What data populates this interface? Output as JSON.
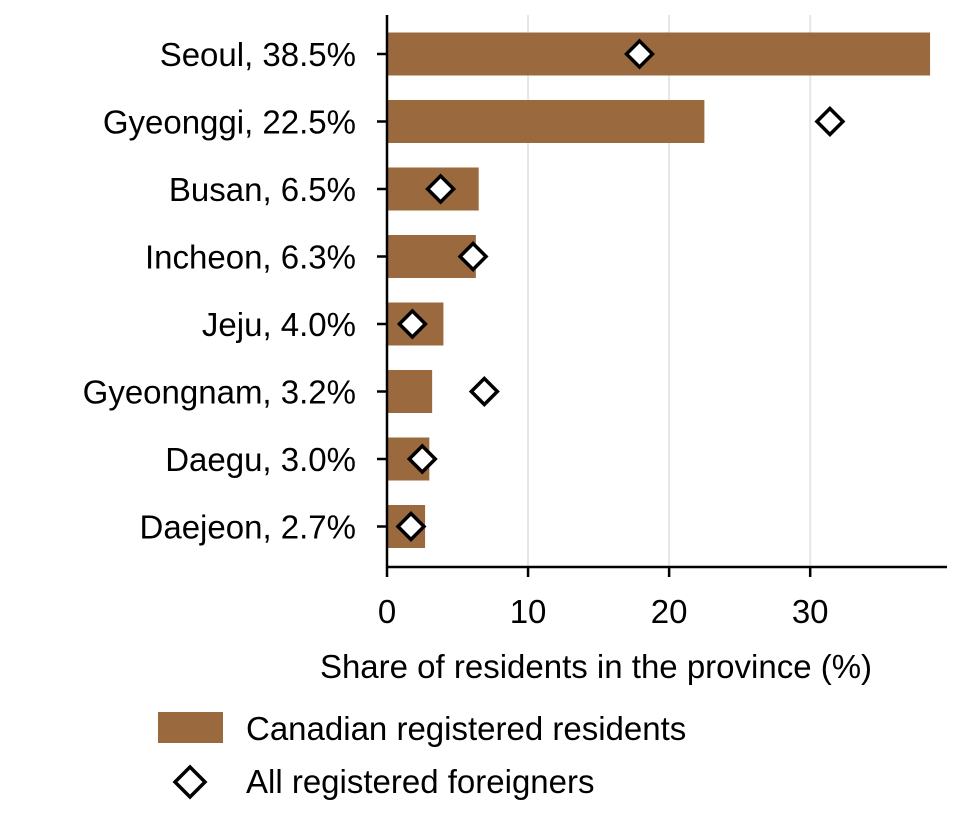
{
  "chart_data": {
    "type": "bar",
    "orientation": "horizontal",
    "categories": [
      "Seoul, 38.5%",
      "Gyeonggi, 22.5%",
      "Busan, 6.5%",
      "Incheon, 6.3%",
      "Jeju, 4.0%",
      "Gyeongnam, 3.2%",
      "Daegu, 3.0%",
      "Daejeon, 2.7%"
    ],
    "series": [
      {
        "name": "Canadian registered residents",
        "mark": "bar",
        "color": "#9a6a3e",
        "values": [
          38.5,
          22.5,
          6.5,
          6.3,
          4.0,
          3.2,
          3.0,
          2.7
        ]
      },
      {
        "name": "All registered foreigners",
        "mark": "diamond",
        "color": "#ffffff",
        "values": [
          17.9,
          31.4,
          3.8,
          6.1,
          1.8,
          6.9,
          2.5,
          1.7
        ]
      }
    ],
    "title": "",
    "xlabel": "Share of residents in the province (%)",
    "ylabel": "",
    "xlim": [
      0,
      39.7
    ],
    "xticks": [
      0,
      10,
      20,
      30
    ],
    "grid": "vertical",
    "legend_position": "bottom"
  }
}
